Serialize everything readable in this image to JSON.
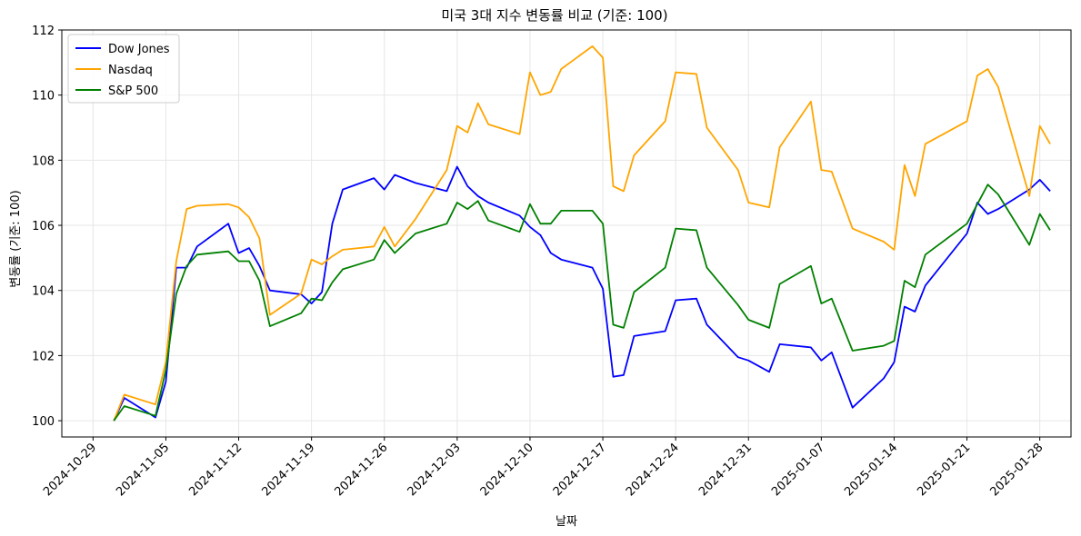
{
  "chart_data": {
    "type": "line",
    "title": "미국 3대 지수 변동률 비교 (기준: 100)",
    "xlabel": "날짜",
    "ylabel": "변동률 (기준: 100)",
    "xlim": [
      "2024-10-26",
      "2025-01-31"
    ],
    "ylim": [
      99.5,
      112.0
    ],
    "yticks": [
      100,
      102,
      104,
      106,
      108,
      110,
      112
    ],
    "xticks": [
      "2024-10-29",
      "2024-11-05",
      "2024-11-12",
      "2024-11-19",
      "2024-11-26",
      "2024-12-03",
      "2024-12-10",
      "2024-12-17",
      "2024-12-24",
      "2024-12-31",
      "2025-01-07",
      "2025-01-14",
      "2025-01-21",
      "2025-01-28"
    ],
    "grid": true,
    "legend_position": "top-left",
    "x": [
      "2024-10-31",
      "2024-11-01",
      "2024-11-04",
      "2024-11-05",
      "2024-11-06",
      "2024-11-07",
      "2024-11-08",
      "2024-11-11",
      "2024-11-12",
      "2024-11-13",
      "2024-11-14",
      "2024-11-15",
      "2024-11-18",
      "2024-11-19",
      "2024-11-20",
      "2024-11-21",
      "2024-11-22",
      "2024-11-25",
      "2024-11-26",
      "2024-11-27",
      "2024-11-29",
      "2024-12-02",
      "2024-12-03",
      "2024-12-04",
      "2024-12-05",
      "2024-12-06",
      "2024-12-09",
      "2024-12-10",
      "2024-12-11",
      "2024-12-12",
      "2024-12-13",
      "2024-12-16",
      "2024-12-17",
      "2024-12-18",
      "2024-12-19",
      "2024-12-20",
      "2024-12-23",
      "2024-12-24",
      "2024-12-26",
      "2024-12-27",
      "2024-12-30",
      "2024-12-31",
      "2025-01-02",
      "2025-01-03",
      "2025-01-06",
      "2025-01-07",
      "2025-01-08",
      "2025-01-10",
      "2025-01-13",
      "2025-01-14",
      "2025-01-15",
      "2025-01-16",
      "2025-01-17",
      "2025-01-21",
      "2025-01-22",
      "2025-01-23",
      "2025-01-24",
      "2025-01-27",
      "2025-01-28",
      "2025-01-29"
    ],
    "series": [
      {
        "name": "Dow Jones",
        "color": "#0000ff",
        "values": [
          100.0,
          100.7,
          100.1,
          101.2,
          104.7,
          104.7,
          105.35,
          106.05,
          105.15,
          105.3,
          104.75,
          104.0,
          103.88,
          103.6,
          103.95,
          106.05,
          107.1,
          107.45,
          107.1,
          107.55,
          107.3,
          107.05,
          107.8,
          107.2,
          106.9,
          106.7,
          106.3,
          105.95,
          105.7,
          105.15,
          104.95,
          104.7,
          104.05,
          101.35,
          101.4,
          102.6,
          102.75,
          103.7,
          103.75,
          102.95,
          101.95,
          101.85,
          101.5,
          102.35,
          102.25,
          101.85,
          102.1,
          100.4,
          101.3,
          101.8,
          103.5,
          103.35,
          104.15,
          105.75,
          106.7,
          106.35,
          106.5,
          107.1,
          107.4,
          107.05
        ]
      },
      {
        "name": "Nasdaq",
        "color": "#ffa500",
        "values": [
          100.0,
          100.8,
          100.5,
          101.8,
          104.9,
          106.5,
          106.6,
          106.65,
          106.55,
          106.25,
          105.6,
          103.25,
          103.9,
          104.95,
          104.8,
          105.05,
          105.25,
          105.35,
          105.95,
          105.35,
          106.2,
          107.7,
          109.05,
          108.85,
          109.75,
          109.1,
          108.8,
          110.7,
          110.0,
          110.1,
          110.8,
          111.5,
          111.15,
          107.2,
          107.05,
          108.15,
          109.2,
          110.7,
          110.65,
          109.0,
          107.7,
          106.7,
          106.55,
          108.4,
          109.8,
          107.7,
          107.65,
          105.9,
          105.5,
          105.25,
          107.85,
          106.9,
          108.5,
          109.2,
          110.6,
          110.8,
          110.25,
          106.9,
          109.05,
          108.5
        ]
      },
      {
        "name": "S&P 500",
        "color": "#008000",
        "values": [
          100.0,
          100.45,
          100.15,
          101.55,
          103.9,
          104.75,
          105.1,
          105.2,
          104.9,
          104.9,
          104.3,
          102.9,
          103.3,
          103.75,
          103.7,
          104.25,
          104.65,
          104.95,
          105.55,
          105.15,
          105.75,
          106.05,
          106.7,
          106.5,
          106.75,
          106.15,
          105.8,
          106.65,
          106.05,
          106.05,
          106.45,
          106.45,
          106.05,
          102.95,
          102.85,
          103.95,
          104.7,
          105.9,
          105.85,
          104.7,
          103.55,
          103.1,
          102.85,
          104.2,
          104.75,
          103.6,
          103.75,
          102.15,
          102.3,
          102.45,
          104.3,
          104.1,
          105.1,
          106.05,
          106.65,
          107.25,
          106.95,
          105.4,
          106.35,
          105.85
        ]
      }
    ]
  }
}
